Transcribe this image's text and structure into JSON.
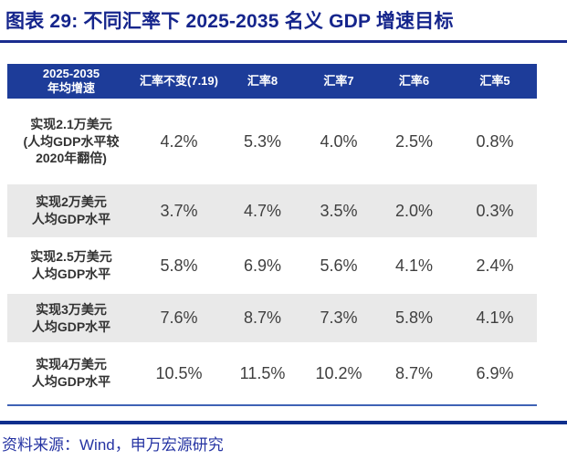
{
  "page_title": "图表 29: 不同汇率下 2025-2035 名义 GDP 增速目标",
  "source_note": "资料来源：Wind，申万宏源研究",
  "colors": {
    "title_blue": "#15258C",
    "title_underline_blue": "#1A2C8F",
    "header_bg_blue": "#1D3C99",
    "header_text": "#FFFFFF",
    "stripe_gray": "#E9E9E9",
    "thin_rule_blue": "#3F62B5",
    "thick_rule_blue": "#0E2F8D",
    "source_text_blue": "#2634A3",
    "label_text": "#333333",
    "value_text": "#3F3F3F"
  },
  "chart_data": {
    "type": "table",
    "title": "图表 29: 不同汇率下 2025-2035 名义 GDP 增速目标",
    "columns": [
      "2025-2035\n年均增速",
      "汇率不变(7.19)",
      "汇率8",
      "汇率7",
      "汇率6",
      "汇率5"
    ],
    "rows": [
      {
        "label": "实现2.1万美元\n(人均GDP水平较\n2020年翻倍)",
        "values": [
          "4.2%",
          "5.3%",
          "4.0%",
          "2.5%",
          "0.8%"
        ]
      },
      {
        "label": "实现2万美元\n人均GDP水平",
        "values": [
          "3.7%",
          "4.7%",
          "3.5%",
          "2.0%",
          "0.3%"
        ]
      },
      {
        "label": "实现2.5万美元\n人均GDP水平",
        "values": [
          "5.8%",
          "6.9%",
          "5.6%",
          "4.1%",
          "2.4%"
        ]
      },
      {
        "label": "实现3万美元\n人均GDP水平",
        "values": [
          "7.6%",
          "8.7%",
          "7.3%",
          "5.8%",
          "4.1%"
        ]
      },
      {
        "label": "实现4万美元\n人均GDP水平",
        "values": [
          "10.5%",
          "11.5%",
          "10.2%",
          "8.7%",
          "6.9%"
        ]
      }
    ],
    "source": "资料来源：Wind，申万宏源研究"
  }
}
